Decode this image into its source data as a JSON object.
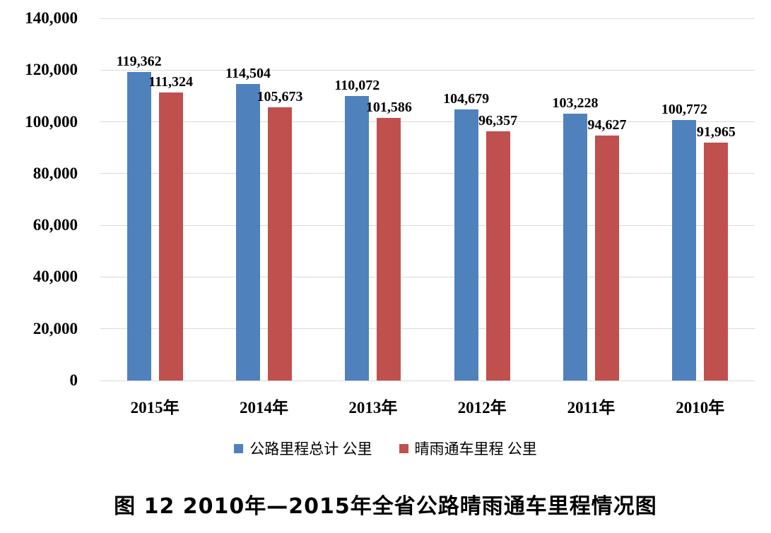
{
  "chart_data": {
    "type": "bar",
    "title": "图 12  2010年—2015年全省公路晴雨通车里程情况图",
    "categories": [
      "2015年",
      "2014年",
      "2013年",
      "2012年",
      "2011年",
      "2010年"
    ],
    "series": [
      {
        "name": "公路里程总计 公里",
        "color": "#4F81BD",
        "values": [
          119362,
          114504,
          110072,
          104679,
          103228,
          100772
        ],
        "labels": [
          "119,362",
          "114,504",
          "110,072",
          "104,679",
          "103,228",
          "100,772"
        ]
      },
      {
        "name": "晴雨通车里程 公里",
        "color": "#C0504D",
        "values": [
          111324,
          105673,
          101586,
          96357,
          94627,
          91965
        ],
        "labels": [
          "111,324",
          "105,673",
          "101,586",
          "96,357",
          "94,627",
          "91,965"
        ]
      }
    ],
    "xlabel": "",
    "ylabel": "",
    "ylim": [
      0,
      140000
    ],
    "ytick_step": 20000,
    "ytick_labels": [
      "0",
      "20,000",
      "40,000",
      "60,000",
      "80,000",
      "100,000",
      "120,000",
      "140,000"
    ],
    "grid": true,
    "gridline_color": "#D9D9D9",
    "legend_position": "bottom",
    "background_color": "#FFFFFF",
    "text_color": "#000000"
  }
}
